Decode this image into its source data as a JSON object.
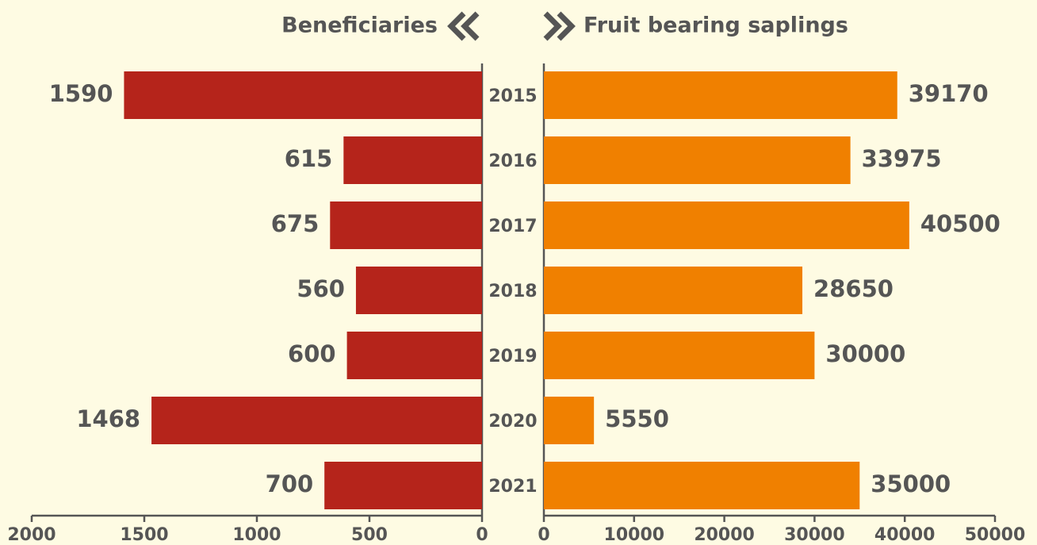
{
  "chart_data": {
    "type": "bar",
    "orientation": "horizontal",
    "categories": [
      "2015",
      "2016",
      "2017",
      "2018",
      "2019",
      "2020",
      "2021"
    ],
    "series": [
      {
        "name": "Beneficiaries",
        "color": "#b5241b",
        "values": [
          1590,
          615,
          675,
          560,
          600,
          1468,
          700
        ],
        "axis": "x"
      },
      {
        "name": "Fruit bearing saplings",
        "color": "#f08000",
        "values": [
          39170,
          33975,
          40500,
          28650,
          30000,
          5550,
          35000
        ],
        "axis": "x2"
      }
    ],
    "xlim": [
      0,
      2000
    ],
    "x_reversed": true,
    "xticks": [
      0,
      500,
      1000,
      1500,
      2000
    ],
    "x2lim": [
      0,
      50000
    ],
    "x2ticks": [
      0,
      10000,
      20000,
      30000,
      40000,
      50000
    ]
  }
}
